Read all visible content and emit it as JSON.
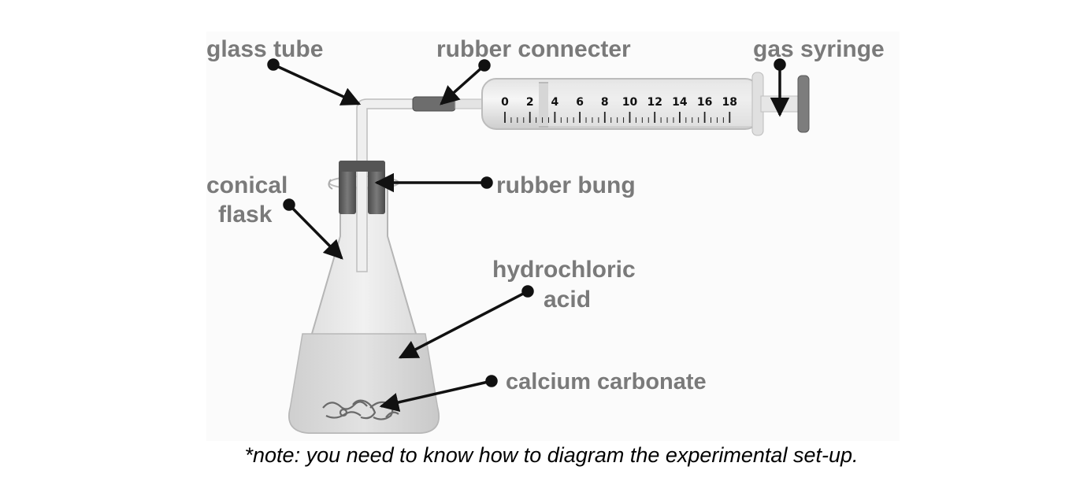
{
  "labels": {
    "glass_tube": "glass tube",
    "rubber_connecter": "rubber connecter",
    "gas_syringe": "gas syringe",
    "conical_line1": "conical",
    "conical_line2": "flask",
    "rubber_bung": "rubber bung",
    "hcl_line1": "hydrochloric",
    "hcl_line2": "acid",
    "calcium_carbonate": "calcium carbonate"
  },
  "syringe_scale": [
    "0",
    "2",
    "4",
    "6",
    "8",
    "10",
    "12",
    "14",
    "16",
    "18"
  ],
  "note": "*note: you need to know how to diagram the experimental set-up.",
  "colors": {
    "label": "#7a7a7a",
    "arrow": "#111111"
  }
}
